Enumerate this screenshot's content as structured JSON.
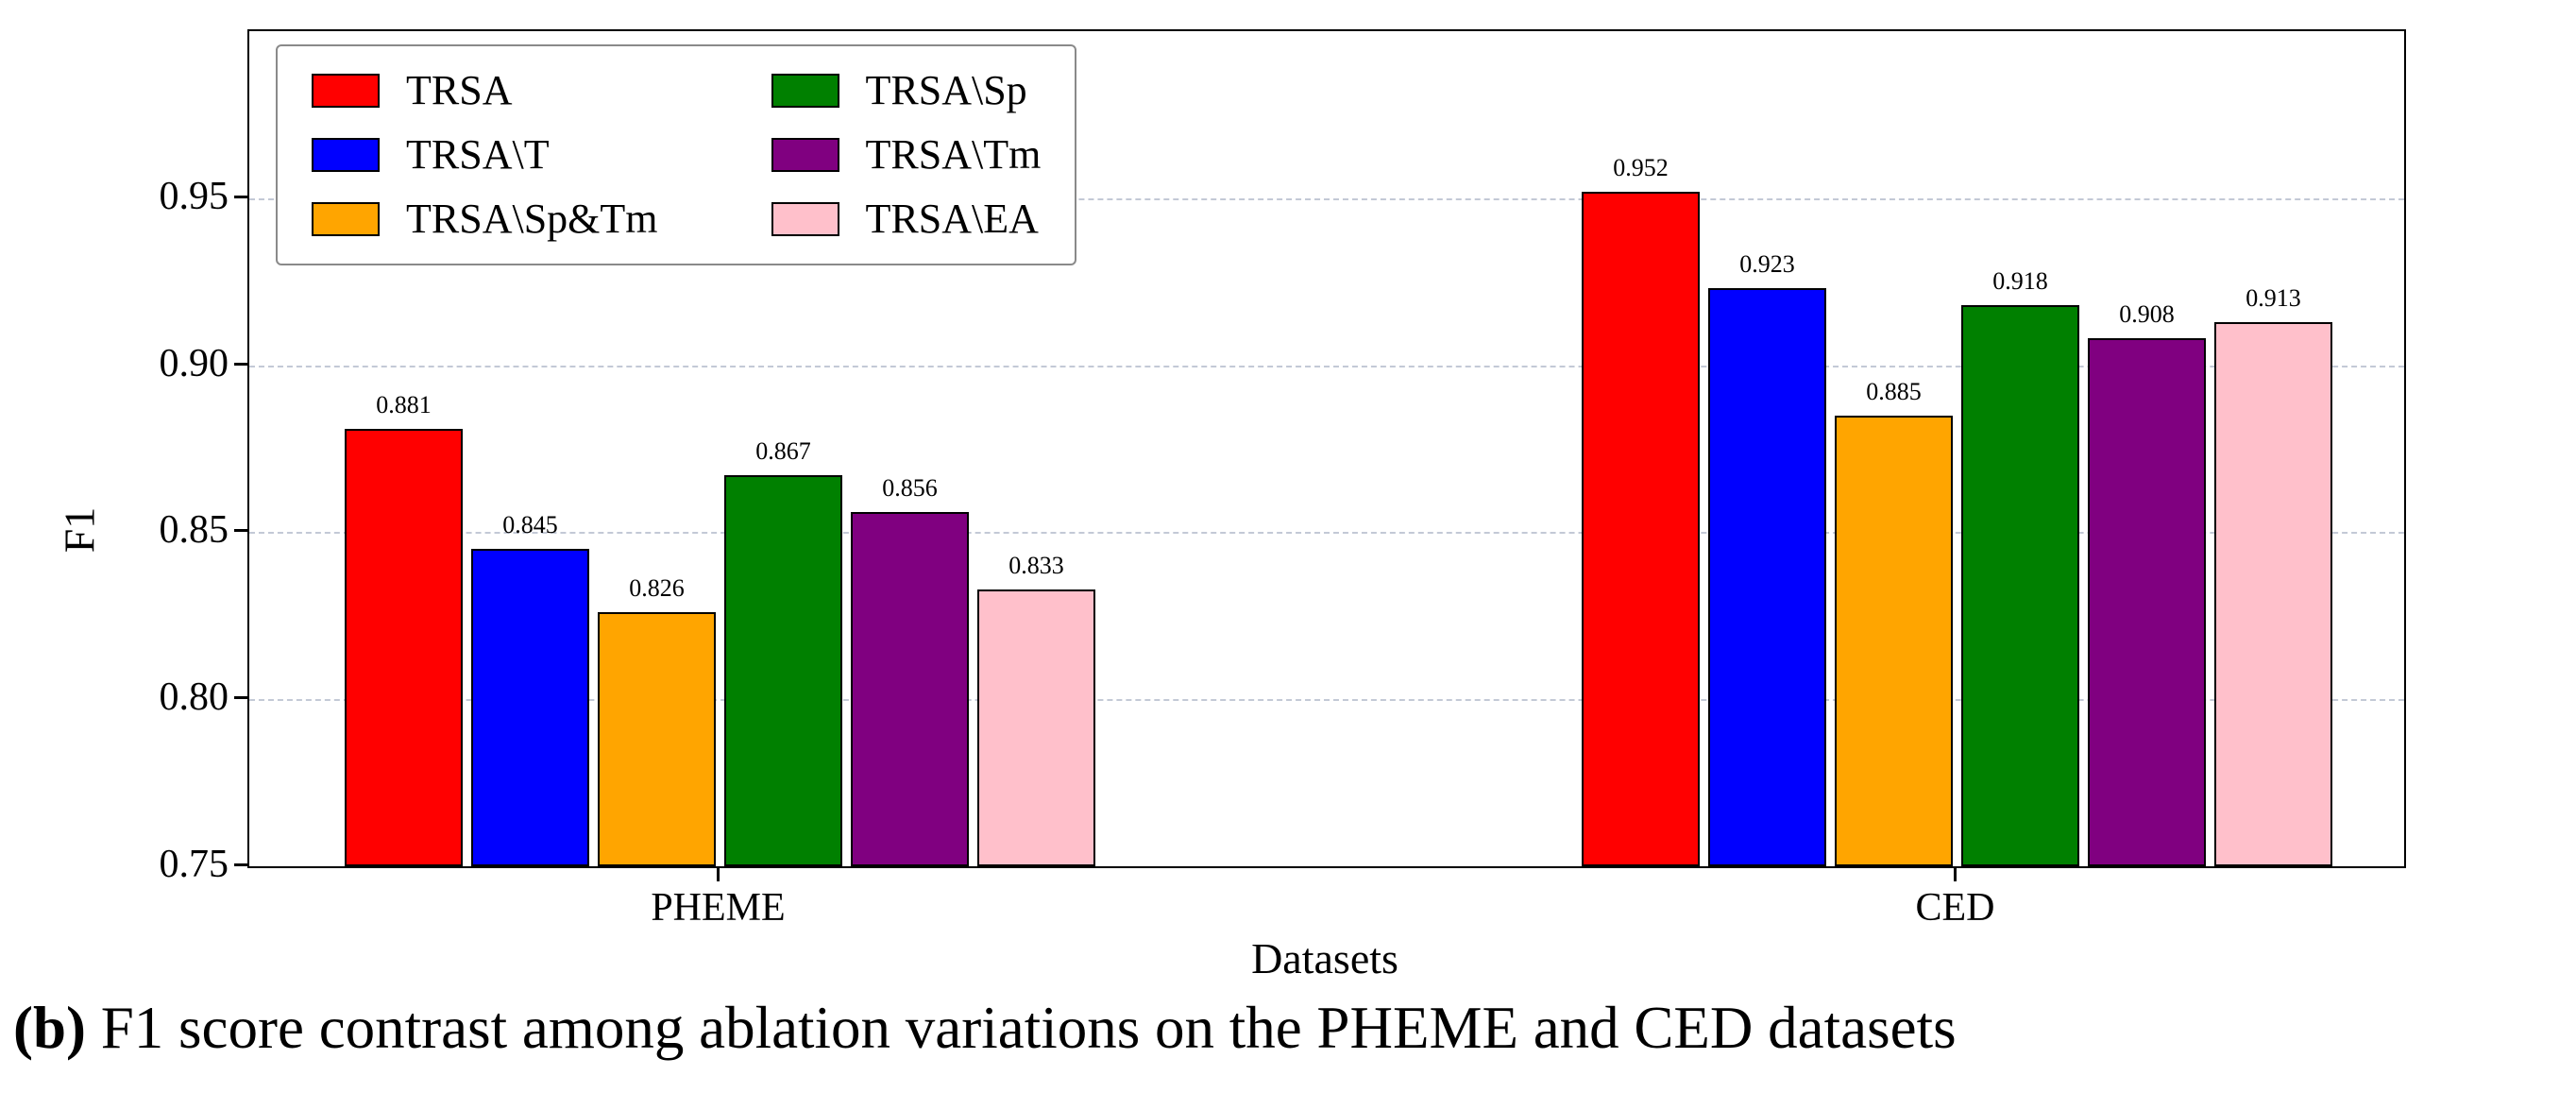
{
  "caption": {
    "prefix": "(b)",
    "rest": " F1 score contrast among ablation variations on the PHEME and CED datasets"
  },
  "chart_data": {
    "type": "bar",
    "title": "",
    "xlabel": "Datasets",
    "ylabel": "F1",
    "ylim": [
      0.75,
      1.0
    ],
    "yticks": [
      0.75,
      0.8,
      0.85,
      0.9,
      0.95
    ],
    "grid": "horizontal-dashed",
    "legend_position": "upper-left",
    "categories": [
      "PHEME",
      "CED"
    ],
    "series": [
      {
        "name": "TRSA",
        "color": "#ff0000",
        "values": [
          0.881,
          0.952
        ],
        "labels": [
          "0.881",
          "0.952"
        ]
      },
      {
        "name": "TRSA\\T",
        "color": "#0000ff",
        "values": [
          0.845,
          0.923
        ],
        "labels": [
          "0.845",
          "0.923"
        ]
      },
      {
        "name": "TRSA\\Sp&Tm",
        "color": "#ffa500",
        "values": [
          0.826,
          0.885
        ],
        "labels": [
          "0.826",
          "0.885"
        ]
      },
      {
        "name": "TRSA\\Sp",
        "color": "#008000",
        "values": [
          0.867,
          0.918
        ],
        "labels": [
          "0.867",
          "0.918"
        ]
      },
      {
        "name": "TRSA\\Tm",
        "color": "#800080",
        "values": [
          0.856,
          0.908
        ],
        "labels": [
          "0.856",
          "0.908"
        ]
      },
      {
        "name": "TRSA\\EA",
        "color": "#ffc0cb",
        "values": [
          0.833,
          0.913
        ],
        "labels": [
          "0.833",
          "0.913"
        ]
      }
    ]
  }
}
